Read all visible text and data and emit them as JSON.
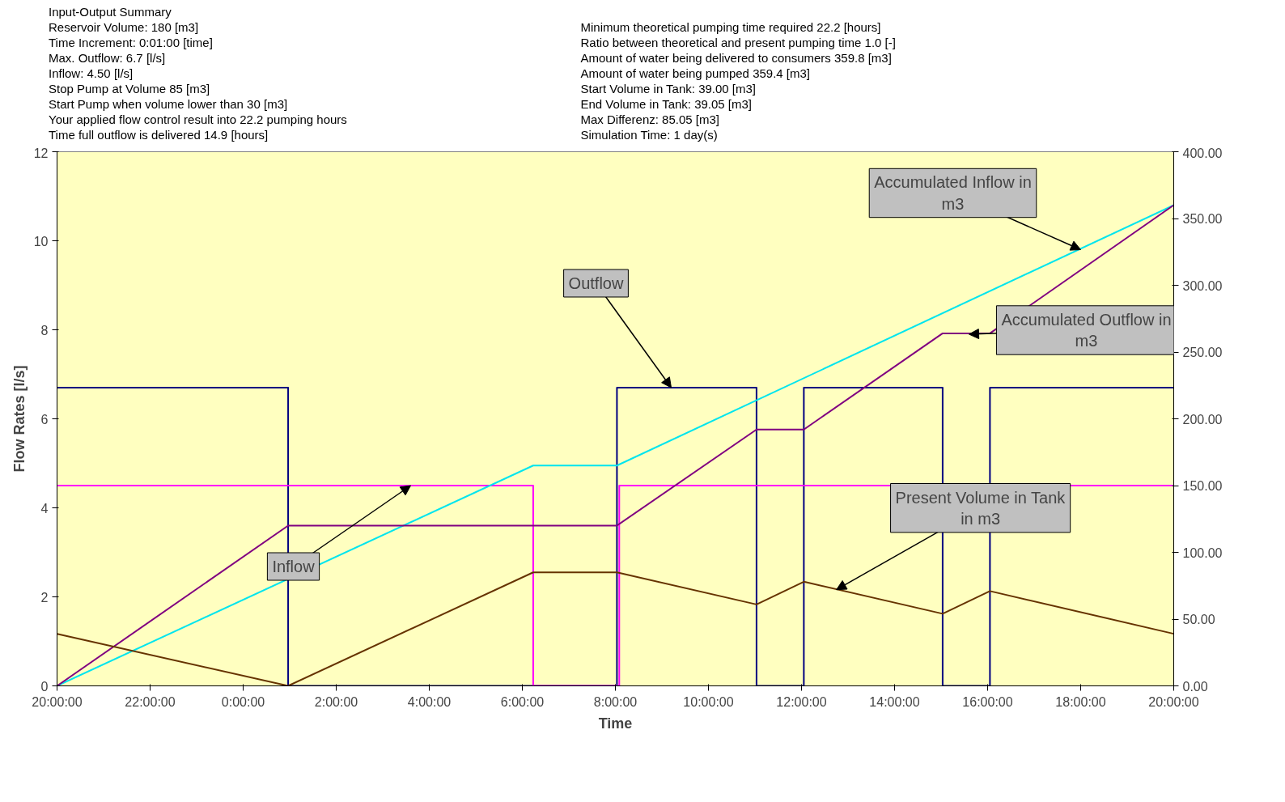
{
  "chart_data": {
    "type": "line",
    "title": "Input-Output Summary",
    "xlabel": "Time",
    "ylabel": "Flow Rates [l/s]",
    "xlim": [
      "2000-01-01T20:00",
      "2000-01-02T20:00"
    ],
    "xticks": [
      {
        "value": "2000-01-01T20:00",
        "label": "20:00:00"
      },
      {
        "value": "2000-01-01T22:00",
        "label": "22:00:00"
      },
      {
        "value": "2000-01-02T00:00",
        "label": "0:00:00"
      },
      {
        "value": "2000-01-02T02:00",
        "label": "2:00:00"
      },
      {
        "value": "2000-01-02T04:00",
        "label": "4:00:00"
      },
      {
        "value": "2000-01-02T06:00",
        "label": "6:00:00"
      },
      {
        "value": "2000-01-02T08:00",
        "label": "8:00:00"
      },
      {
        "value": "2000-01-02T10:00",
        "label": "10:00:00"
      },
      {
        "value": "2000-01-02T12:00",
        "label": "12:00:00"
      },
      {
        "value": "2000-01-02T14:00",
        "label": "14:00:00"
      },
      {
        "value": "2000-01-02T16:00",
        "label": "16:00:00"
      },
      {
        "value": "2000-01-02T18:00",
        "label": "18:00:00"
      },
      {
        "value": "2000-01-02T20:00",
        "label": "20:00:00"
      }
    ],
    "ylim": [
      0,
      12
    ],
    "yticks": [
      0,
      2,
      4,
      6,
      8,
      10,
      12
    ],
    "y2lim": [
      0,
      400
    ],
    "y2ticks": [
      {
        "value": 0,
        "label": "0.00"
      },
      {
        "value": 50,
        "label": "50.00"
      },
      {
        "value": 100,
        "label": "100.00"
      },
      {
        "value": 150,
        "label": "150.00"
      },
      {
        "value": 200,
        "label": "200.00"
      },
      {
        "value": 250,
        "label": "250.00"
      },
      {
        "value": 300,
        "label": "300.00"
      },
      {
        "value": 350,
        "label": "350.00"
      },
      {
        "value": 400,
        "label": "400.00"
      }
    ],
    "grid": false,
    "marker": "none",
    "line_style": "solid",
    "series": [
      {
        "color": "#000080",
        "x": [
          "2000-01-01T20:00",
          "2000-01-02T00:58",
          "2000-01-02T00:58",
          "2000-01-02T08:02",
          "2000-01-02T08:02",
          "2000-01-02T11:02",
          "2000-01-02T11:02",
          "2000-01-02T12:03",
          "2000-01-02T12:03",
          "2000-01-02T15:02",
          "2000-01-02T15:02",
          "2000-01-02T16:03",
          "2000-01-02T16:03",
          "2000-01-02T20:00"
        ],
        "values": [
          6.7,
          6.7,
          0,
          0,
          6.7,
          6.7,
          0,
          0,
          6.7,
          6.7,
          0,
          0,
          6.7,
          6.7
        ]
      },
      {
        "color": "#ff00ff",
        "x": [
          "2000-01-01T20:00",
          "2000-01-02T06:14",
          "2000-01-02T06:14",
          "2000-01-02T08:05",
          "2000-01-02T08:05",
          "2000-01-02T20:00"
        ],
        "values": [
          4.5,
          4.5,
          0,
          0,
          4.5,
          4.5
        ]
      },
      {
        "color": "#00e5ee",
        "axis": "y2",
        "x": [
          "2000-01-01T20:00",
          "2000-01-02T06:14",
          "2000-01-02T08:02",
          "2000-01-02T20:00"
        ],
        "values": [
          0,
          165,
          165,
          360
        ]
      },
      {
        "color": "#800080",
        "axis": "y2",
        "x": [
          "2000-01-01T20:00",
          "2000-01-02T00:58",
          "2000-01-02T08:02",
          "2000-01-02T11:02",
          "2000-01-02T12:03",
          "2000-01-02T15:02",
          "2000-01-02T16:03",
          "2000-01-02T20:00"
        ],
        "values": [
          0,
          120,
          120,
          192,
          192,
          264,
          264,
          360
        ]
      },
      {
        "color": "#663300",
        "axis": "y2",
        "x": [
          "2000-01-01T20:00",
          "2000-01-02T00:58",
          "2000-01-02T06:14",
          "2000-01-02T08:02",
          "2000-01-02T11:02",
          "2000-01-02T12:03",
          "2000-01-02T15:02",
          "2000-01-02T16:03",
          "2000-01-02T20:00"
        ],
        "values": [
          39,
          0,
          85,
          85,
          61,
          78,
          54,
          71,
          39
        ]
      }
    ],
    "annotations": [
      "Reservoir Volume: 180 [m3]",
      "Time Increment: 0:01:00 [time]",
      "Max. Outflow: 6.7 [l/s]",
      "Inflow: 4.50 [l/s]",
      "Stop Pump at Volume 85 [m3]",
      "Start Pump when volume lower than 30 [m3]",
      "Your applied flow control result into 22.2 pumping hours",
      "Time full outflow is delivered 14.9 [hours]",
      "Minimum theoretical pumping time required 22.2 [hours]",
      "Ratio between theoretical and present pumping time 1.0 [-]",
      "Amount of water being delivered to consumers 359.8 [m3]",
      "Amount of water being pumped 359.4 [m3]",
      "Start Volume in Tank: 39.00 [m3]",
      "End Volume in Tank: 39.05 [m3]",
      "Max Differenz: 85.05 [m3]",
      "Simulation Time: 1 day(s)",
      {
        "text": "Inflow",
        "x": "2000-01-02T03:36",
        "y": 4.5
      },
      {
        "text": "Outflow",
        "x": "2000-01-02T09:12",
        "y": 6.7
      },
      {
        "text": "Accumulated Inflow in m3",
        "x": "2000-01-02T18:00",
        "y": 9.8
      },
      {
        "text": "Accumulated Outflow in m3",
        "x": "2000-01-02T15:36",
        "y": 7.9
      },
      {
        "text": "Present Volume in Tank in m3",
        "x": "2000-01-02T12:45",
        "y": 2.16
      }
    ]
  }
}
